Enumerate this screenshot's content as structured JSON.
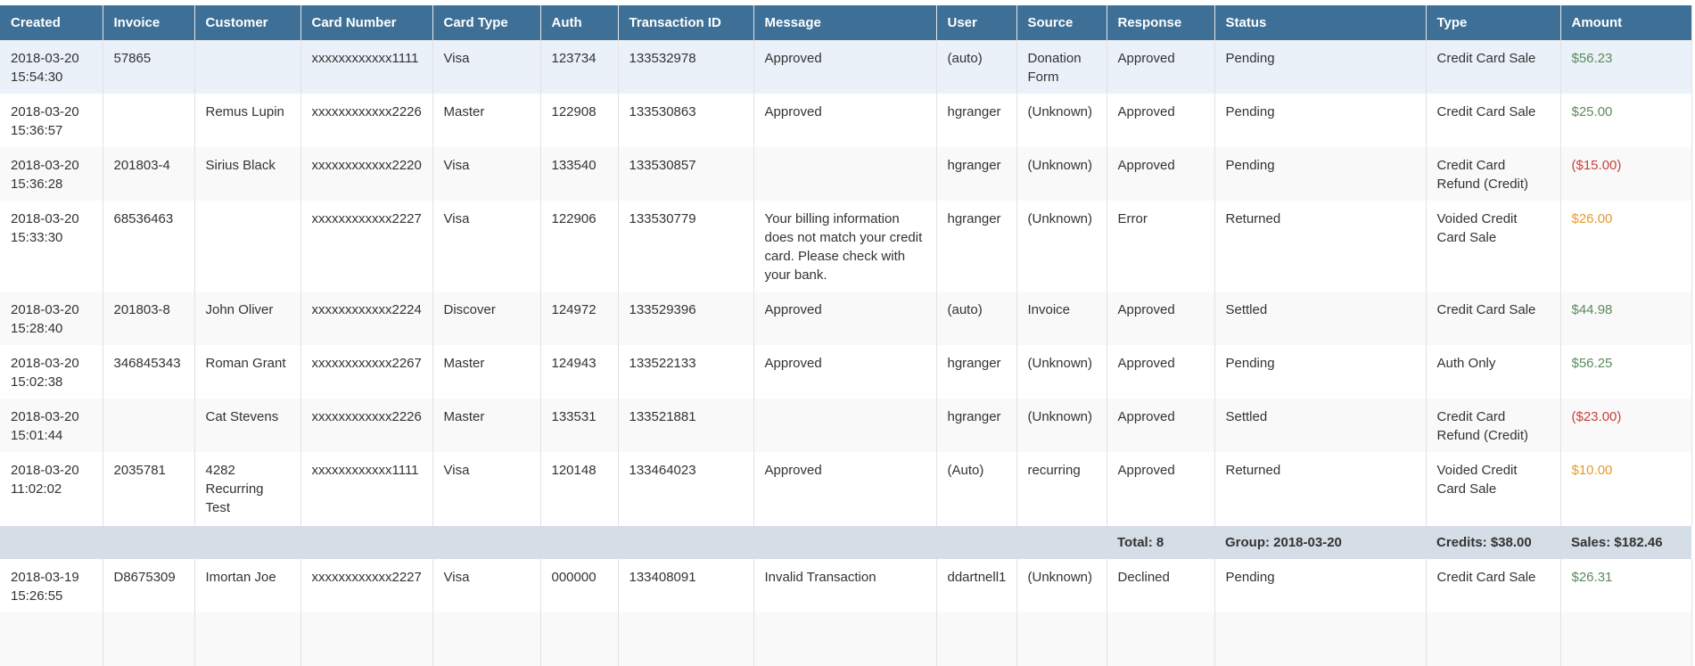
{
  "columns": [
    "Created",
    "Invoice",
    "Customer",
    "Card Number",
    "Card Type",
    "Auth",
    "Transaction ID",
    "Message",
    "User",
    "Source",
    "Response",
    "Status",
    "Type",
    "Amount"
  ],
  "colors": {
    "header": "#3d6f97",
    "sale": "#5b8a5e",
    "credit": "#c9403a",
    "voided": "#e39b2e",
    "group_row": "#d5dde6"
  },
  "rows": [
    {
      "created": "2018-03-20 15:54:30",
      "invoice": "57865",
      "customer": "",
      "card": "xxxxxxxxxxxx1111",
      "card_type": "Visa",
      "auth": "123734",
      "txn": "133532978",
      "message": "Approved",
      "user": "(auto)",
      "source": "Donation Form",
      "response": "Approved",
      "status": "Pending",
      "type": "Credit Card Sale",
      "amount": "$56.23",
      "kind": "sale"
    },
    {
      "created": "2018-03-20 15:36:57",
      "invoice": "",
      "customer": "Remus Lupin",
      "card": "xxxxxxxxxxxx2226",
      "card_type": "Master",
      "auth": "122908",
      "txn": "133530863",
      "message": "Approved",
      "user": "hgranger",
      "source": "(Unknown)",
      "response": "Approved",
      "status": "Pending",
      "type": "Credit Card Sale",
      "amount": "$25.00",
      "kind": "sale"
    },
    {
      "created": "2018-03-20 15:36:28",
      "invoice": "201803-4",
      "customer": "Sirius Black",
      "card": "xxxxxxxxxxxx2220",
      "card_type": "Visa",
      "auth": "133540",
      "txn": "133530857",
      "message": "",
      "user": "hgranger",
      "source": "(Unknown)",
      "response": "Approved",
      "status": "Pending",
      "type": "Credit Card Refund (Credit)",
      "amount": "($15.00)",
      "kind": "credit"
    },
    {
      "created": "2018-03-20 15:33:30",
      "invoice": "68536463",
      "customer": "",
      "card": "xxxxxxxxxxxx2227",
      "card_type": "Visa",
      "auth": "122906",
      "txn": "133530779",
      "message": "Your billing information does not match your credit card. Please check with your bank.",
      "user": "hgranger",
      "source": "(Unknown)",
      "response": "Error",
      "status": "Returned",
      "type": "Voided Credit Card Sale",
      "amount": "$26.00",
      "kind": "void"
    },
    {
      "created": "2018-03-20 15:28:40",
      "invoice": "201803-8",
      "customer": "John Oliver",
      "card": "xxxxxxxxxxxx2224",
      "card_type": "Discover",
      "auth": "124972",
      "txn": "133529396",
      "message": "Approved",
      "user": "(auto)",
      "source": "Invoice",
      "response": "Approved",
      "status": "Settled",
      "type": "Credit Card Sale",
      "amount": "$44.98",
      "kind": "sale"
    },
    {
      "created": "2018-03-20 15:02:38",
      "invoice": "346845343",
      "customer": "Roman Grant",
      "card": "xxxxxxxxxxxx2267",
      "card_type": "Master",
      "auth": "124943",
      "txn": "133522133",
      "message": "Approved",
      "user": "hgranger",
      "source": "(Unknown)",
      "response": "Approved",
      "status": "Pending",
      "type": "Auth Only",
      "amount": "$56.25",
      "kind": "sale"
    },
    {
      "created": "2018-03-20 15:01:44",
      "invoice": "",
      "customer": "Cat Stevens",
      "card": "xxxxxxxxxxxx2226",
      "card_type": "Master",
      "auth": "133531",
      "txn": "133521881",
      "message": "",
      "user": "hgranger",
      "source": "(Unknown)",
      "response": "Approved",
      "status": "Settled",
      "type": "Credit Card Refund (Credit)",
      "amount": "($23.00)",
      "kind": "credit"
    },
    {
      "created": "2018-03-20 11:02:02",
      "invoice": "2035781",
      "customer": "4282 Recurring Test",
      "card": "xxxxxxxxxxxx1111",
      "card_type": "Visa",
      "auth": "120148",
      "txn": "133464023",
      "message": "Approved",
      "user": "(Auto)",
      "source": "recurring",
      "response": "Approved",
      "status": "Returned",
      "type": "Voided Credit Card Sale",
      "amount": "$10.00",
      "kind": "void"
    }
  ],
  "group": {
    "total": "Total: 8",
    "group": "Group: 2018-03-20",
    "credits": "Credits: $38.00",
    "sales": "Sales: $182.46"
  },
  "rows_after": [
    {
      "created": "2018-03-19 15:26:55",
      "invoice": "D8675309",
      "customer": "Imortan Joe",
      "card": "xxxxxxxxxxxx2227",
      "card_type": "Visa",
      "auth": "000000",
      "txn": "133408091",
      "message": "Invalid Transaction",
      "user": "ddartnell1",
      "source": "(Unknown)",
      "response": "Declined",
      "status": "Pending",
      "type": "Credit Card Sale",
      "amount": "$26.31",
      "kind": "sale"
    }
  ]
}
